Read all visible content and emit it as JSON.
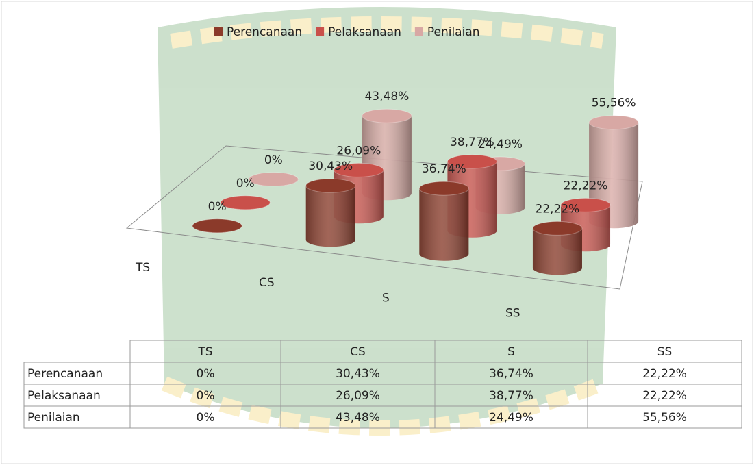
{
  "chart_data": {
    "type": "cylinder3d",
    "categories": [
      "TS",
      "CS",
      "S",
      "SS"
    ],
    "series": [
      {
        "name": "Perencanaan",
        "color": "#8b3a2a",
        "values": [
          0,
          30.43,
          36.74,
          22.22
        ],
        "value_labels": [
          "0%",
          "30,43%",
          "36,74%",
          "22,22%"
        ]
      },
      {
        "name": "Pelaksanaan",
        "color": "#c9504a",
        "values": [
          0,
          26.09,
          38.77,
          22.22
        ],
        "value_labels": [
          "0%",
          "26,09%",
          "38,77%",
          "22,22%"
        ]
      },
      {
        "name": "Penilaian",
        "color": "#d8a8a4",
        "values": [
          0,
          43.48,
          24.49,
          55.56
        ],
        "value_labels": [
          "0%",
          "43,48%",
          "24,49%",
          "55,56%"
        ]
      }
    ]
  }
}
